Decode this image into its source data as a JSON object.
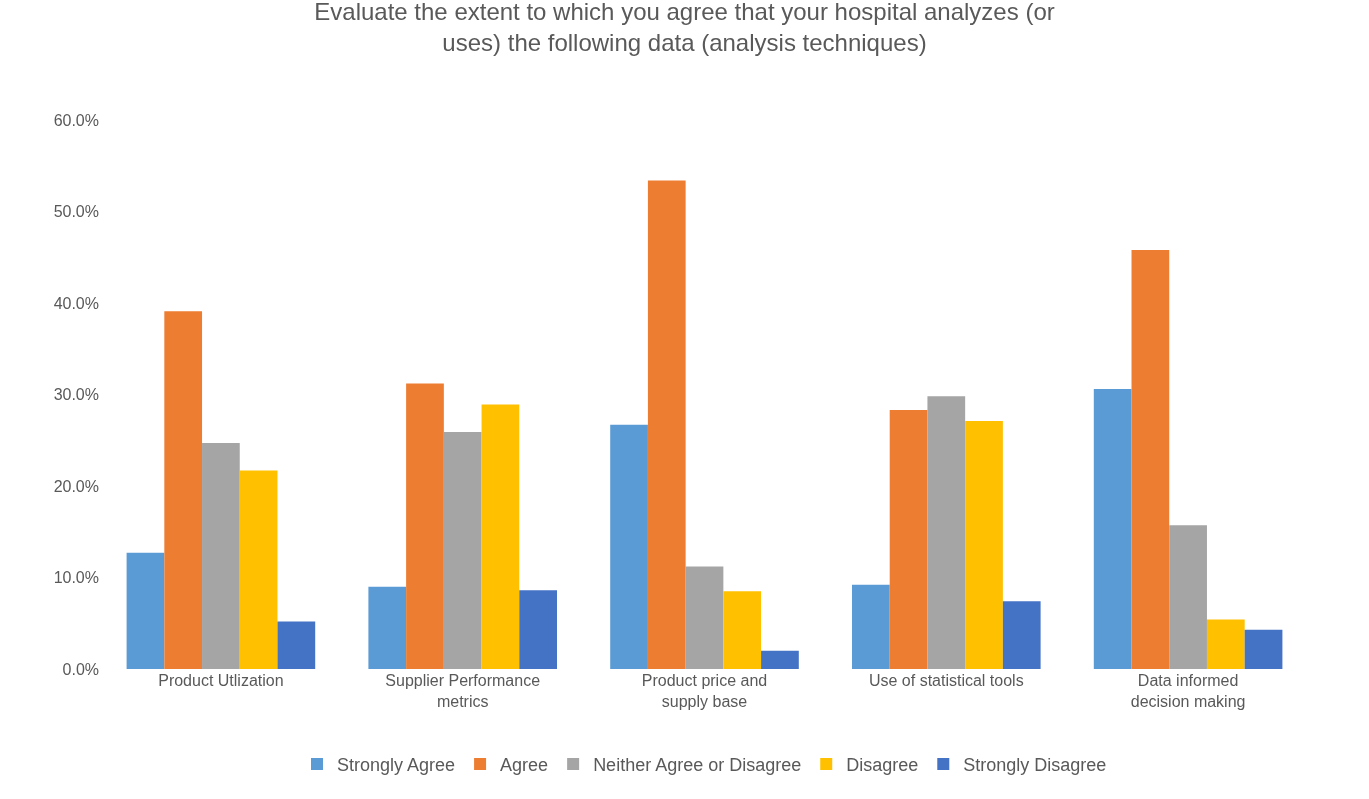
{
  "chart_data": {
    "type": "bar",
    "title": "Evaluate the extent to which you agree that your hospital analyzes (or\nuses) the following data (analysis techniques)",
    "categories": [
      "Product Utlization",
      "Supplier Performance\nmetrics",
      "Product price and\nsupply base",
      "Use of statistical tools",
      "Data informed\ndecision making"
    ],
    "series": [
      {
        "name": "Strongly Agree",
        "color": "#5b9bd5",
        "values": [
          12.7,
          9.0,
          26.7,
          9.2,
          30.6
        ]
      },
      {
        "name": "Agree",
        "color": "#ed7d31",
        "values": [
          39.1,
          31.2,
          53.4,
          28.3,
          45.8
        ]
      },
      {
        "name": "Neither Agree or Disagree",
        "color": "#a5a5a5",
        "values": [
          24.7,
          25.9,
          11.2,
          29.8,
          15.7
        ]
      },
      {
        "name": "Disagree",
        "color": "#ffc000",
        "values": [
          21.7,
          28.9,
          8.5,
          27.1,
          5.4
        ]
      },
      {
        "name": "Strongly Disagree",
        "color": "#4472c4",
        "values": [
          5.2,
          8.6,
          2.0,
          7.4,
          4.3
        ]
      }
    ],
    "ylim": [
      0,
      60
    ],
    "yticks": [
      {
        "value": 0,
        "label": "0.0%"
      },
      {
        "value": 10,
        "label": "10.0%"
      },
      {
        "value": 20,
        "label": "20.0%"
      },
      {
        "value": 30,
        "label": "30.0%"
      },
      {
        "value": 40,
        "label": "40.0%"
      },
      {
        "value": 50,
        "label": "50.0%"
      },
      {
        "value": 60,
        "label": "60.0%"
      }
    ],
    "grid": false,
    "legend": "bottom"
  }
}
